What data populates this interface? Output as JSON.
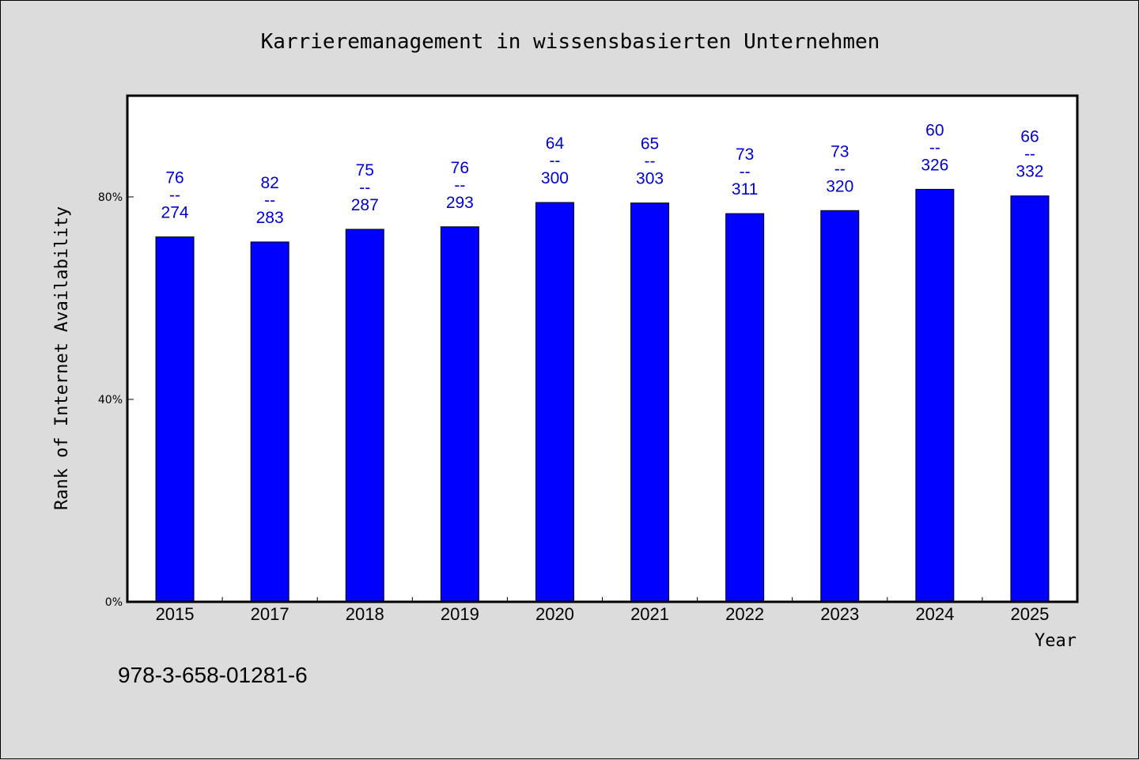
{
  "chart_data": {
    "type": "bar",
    "title": "Karrieremanagement in wissensbasierten Unternehmen",
    "xlabel": "Year",
    "ylabel": "Rank of Internet Availability",
    "categories": [
      "2015",
      "2017",
      "2018",
      "2019",
      "2020",
      "2021",
      "2022",
      "2023",
      "2024",
      "2025"
    ],
    "values": [
      72.1,
      71.1,
      73.6,
      74.1,
      78.9,
      78.8,
      76.7,
      77.3,
      81.5,
      80.2
    ],
    "labels": [
      {
        "top": "76",
        "sep": "--",
        "bottom": "274"
      },
      {
        "top": "82",
        "sep": "--",
        "bottom": "283"
      },
      {
        "top": "75",
        "sep": "--",
        "bottom": "287"
      },
      {
        "top": "76",
        "sep": "--",
        "bottom": "293"
      },
      {
        "top": "64",
        "sep": "--",
        "bottom": "300"
      },
      {
        "top": "65",
        "sep": "--",
        "bottom": "303"
      },
      {
        "top": "73",
        "sep": "--",
        "bottom": "311"
      },
      {
        "top": "73",
        "sep": "--",
        "bottom": "320"
      },
      {
        "top": "60",
        "sep": "--",
        "bottom": "326"
      },
      {
        "top": "66",
        "sep": "--",
        "bottom": "332"
      }
    ],
    "ylim": [
      0,
      100
    ],
    "yticks": [
      {
        "value": 0,
        "label": "0%"
      },
      {
        "value": 40,
        "label": "40%"
      },
      {
        "value": 80,
        "label": "80%"
      }
    ],
    "grid": false,
    "colors": {
      "bar": "#0000ff",
      "label": "#0000c8",
      "background": "#dcdcdc",
      "plot_background": "#ffffff"
    }
  },
  "footer": {
    "isbn": "978-3-658-01281-6"
  }
}
